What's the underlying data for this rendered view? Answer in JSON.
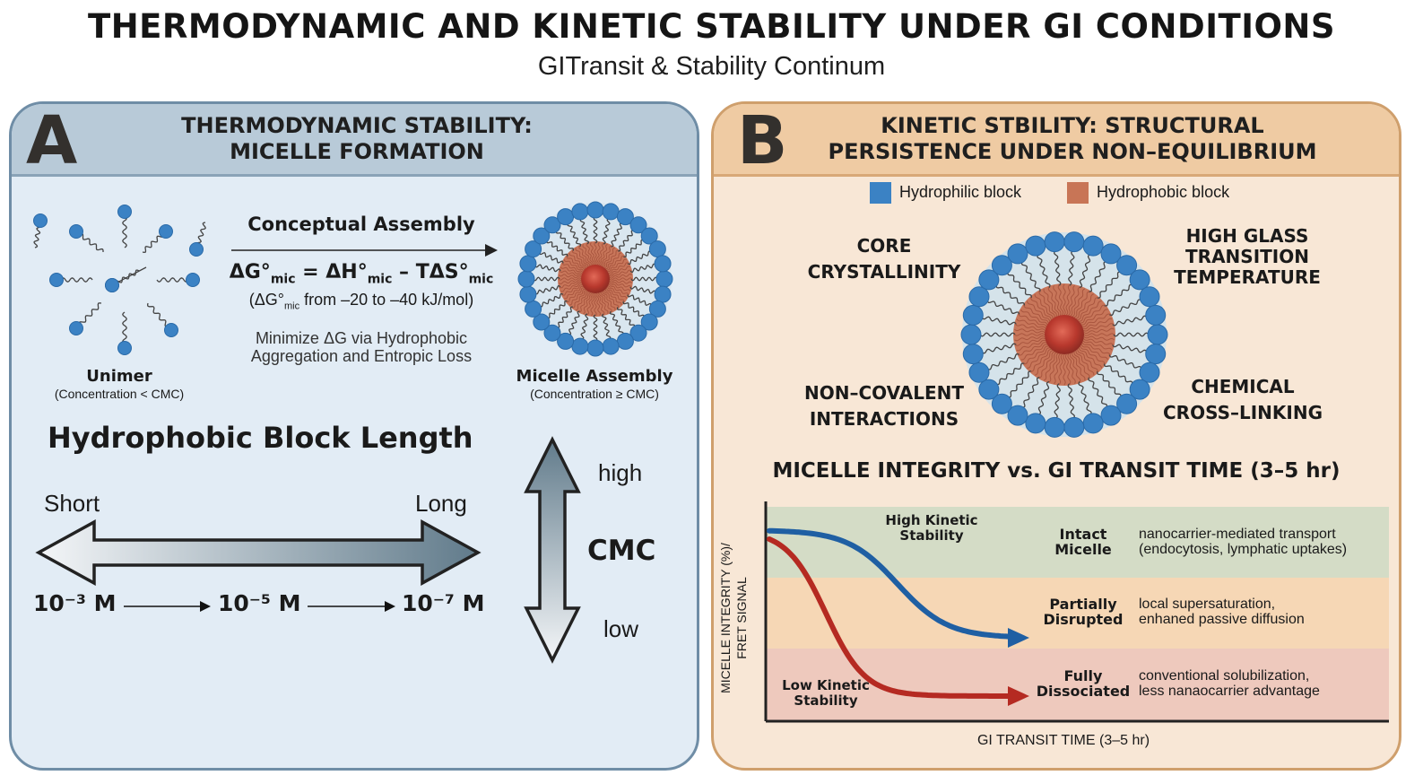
{
  "title": "THERMODYNAMIC AND KINETIC STABILITY UNDER GI CONDITIONS",
  "subtitle": "GITransit & Stability Continum",
  "panel_a": {
    "letter": "A",
    "header_line1": "THERMODYNAMIC STABILITY:",
    "header_line2": "MICELLE FORMATION",
    "unimer_label": "Unimer",
    "unimer_sub": "(Concentration < CMC)",
    "assembly_title": "Conceptual Assembly",
    "equation": {
      "dg": "ΔG°",
      "sub1": "mic",
      "eq": " = ΔH°",
      "sub2": "mic",
      "minus": " – TΔS°",
      "sub3": "mic"
    },
    "range_pre": "(ΔG°",
    "range_sub": "mic",
    "range_post": " from –20 to –40 kJ/mol)",
    "minimize_line1": "Minimize ΔG via Hydrophobic",
    "minimize_line2": "Aggregation and Entropic Loss",
    "micelle_label": "Micelle Assembly",
    "micelle_sub": "(Concentration ≥ CMC)",
    "block_length_title": "Hydrophobic Block Length",
    "short_label": "Short",
    "long_label": "Long",
    "conc_1": "10⁻³ M",
    "conc_2": "10⁻⁵ M",
    "conc_3": "10⁻⁷ M",
    "cmc_high": "high",
    "cmc_label": "CMC",
    "cmc_low": "low"
  },
  "panel_b": {
    "letter": "B",
    "header_line1": "KINETIC STBILITY: STRUCTURAL",
    "header_line2": "PERSISTENCE UNDER NON–EQUILIBRIUM",
    "legend": [
      {
        "label": "Hydrophilic block",
        "color": "#3b82c4"
      },
      {
        "label": "Hydrophobic block",
        "color": "#c87556"
      }
    ],
    "factor_tl": [
      "CORE",
      "CRYSTALLINITY"
    ],
    "factor_tr": [
      "HIGH GLASS",
      "TRANSITION",
      "TEMPERATURE"
    ],
    "factor_bl": [
      "NON–COVALENT",
      "INTERACTIONS"
    ],
    "factor_br": [
      "CHEMICAL",
      "CROSS–LINKING"
    ]
  },
  "chart_data": {
    "type": "line",
    "title": "MICELLE INTEGRITY vs. GI TRANSIT TIME (3–5 hr)",
    "xlabel": "GI TRANSIT TIME (3–5 hr)",
    "ylabel_line1": "MICELLE INTEGRITY (%)/",
    "ylabel_line2": "FRET SIGNAL",
    "series": [
      {
        "name": "High Kinetic Stability",
        "color": "#1f5fa3"
      },
      {
        "name": "Low Kinetic Stability",
        "color": "#b52a22"
      }
    ],
    "series_labels": {
      "high": [
        "High Kinetic",
        "Stability"
      ],
      "low": [
        "Low Kinetic",
        "Stability"
      ]
    },
    "bands": [
      {
        "state": [
          "Intact",
          "Micelle"
        ],
        "desc": [
          "nanocarrier-mediated transport",
          "(endocytosis, lymphatic uptakes)"
        ],
        "color": "#d4dcc6"
      },
      {
        "state": [
          "Partially",
          "Disrupted"
        ],
        "desc": [
          "local supersaturation,",
          "enhaned passive diffusion"
        ],
        "color": "#f6d7b5"
      },
      {
        "state": [
          "Fully",
          "Dissociated"
        ],
        "desc": [
          "conventional solubilization,",
          "less nanaocarrier advantage"
        ],
        "color": "#eec9bd"
      }
    ]
  }
}
